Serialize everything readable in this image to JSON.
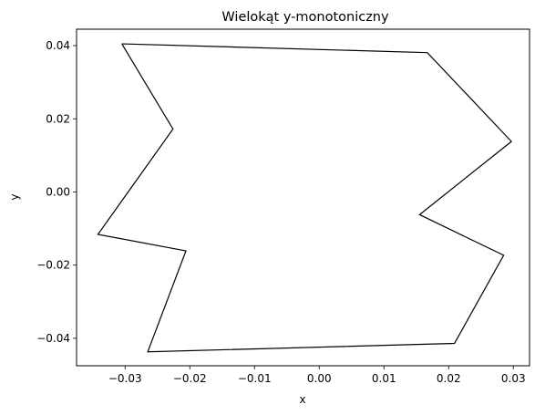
{
  "chart_data": {
    "type": "line",
    "title": "Wielokąt y-monotoniczny",
    "xlabel": "x",
    "ylabel": "y",
    "xlim": [
      -0.0375,
      0.0325
    ],
    "ylim": [
      -0.0475,
      0.0445
    ],
    "xticks": [
      -0.03,
      -0.02,
      -0.01,
      0.0,
      0.01,
      0.02,
      0.03
    ],
    "xtick_labels": [
      "−0.03",
      "−0.02",
      "−0.01",
      "0.00",
      "0.01",
      "0.02",
      "0.03"
    ],
    "yticks": [
      -0.04,
      -0.02,
      0.0,
      0.02,
      0.04
    ],
    "ytick_labels": [
      "−0.04",
      "−0.02",
      "0.00",
      "0.02",
      "0.04"
    ],
    "grid": false,
    "series": [
      {
        "color": "#000000",
        "closed": true,
        "x": [
          -0.0305,
          0.0167,
          0.0297,
          0.0155,
          0.0285,
          0.0209,
          -0.0265,
          -0.0206,
          -0.0342,
          -0.0226,
          -0.0305
        ],
        "y": [
          0.0405,
          0.0381,
          0.0138,
          -0.0062,
          -0.0173,
          -0.0414,
          -0.0437,
          -0.0161,
          -0.0116,
          0.0172,
          0.0405
        ]
      }
    ]
  }
}
